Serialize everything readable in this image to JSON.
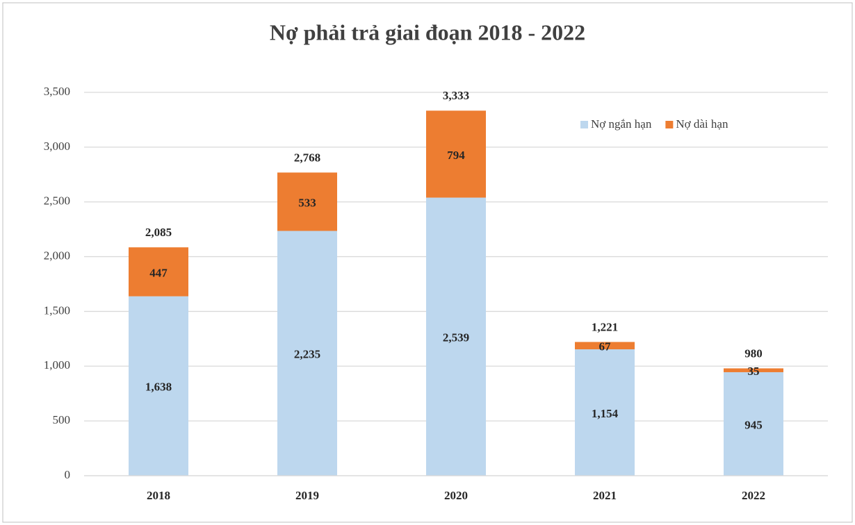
{
  "chart_data": {
    "type": "stacked-bar",
    "title": "Nợ phải trả giai đoạn 2018 - 2022",
    "categories": [
      "2018",
      "2019",
      "2020",
      "2021",
      "2022"
    ],
    "series": [
      {
        "name": "Nợ ngắn hạn",
        "color": "#bdd7ee",
        "values": [
          1638,
          2235,
          2539,
          1154,
          945
        ],
        "value_labels": [
          "1,638",
          "2,235",
          "2,539",
          "1,154",
          "945"
        ]
      },
      {
        "name": "Nợ dài hạn",
        "color": "#ed7d31",
        "values": [
          447,
          533,
          794,
          67,
          35
        ],
        "value_labels": [
          "447",
          "533",
          "794",
          "67",
          "35"
        ]
      }
    ],
    "total_labels": [
      "2,085",
      "2,768",
      "3,333",
      "1,221",
      "980"
    ],
    "ylim": [
      0,
      3500
    ],
    "yticks": [
      0,
      500,
      {
        "value": 1000,
        "label": "1,000"
      },
      {
        "value": 1500,
        "label": "1,500"
      },
      {
        "value": 2000,
        "label": "2,000"
      },
      {
        "value": 2500,
        "label": "2,500"
      },
      {
        "value": 3000,
        "label": "3,000"
      },
      {
        "value": 3500,
        "label": "3,500"
      }
    ],
    "grid": true,
    "legend": "top-right"
  }
}
